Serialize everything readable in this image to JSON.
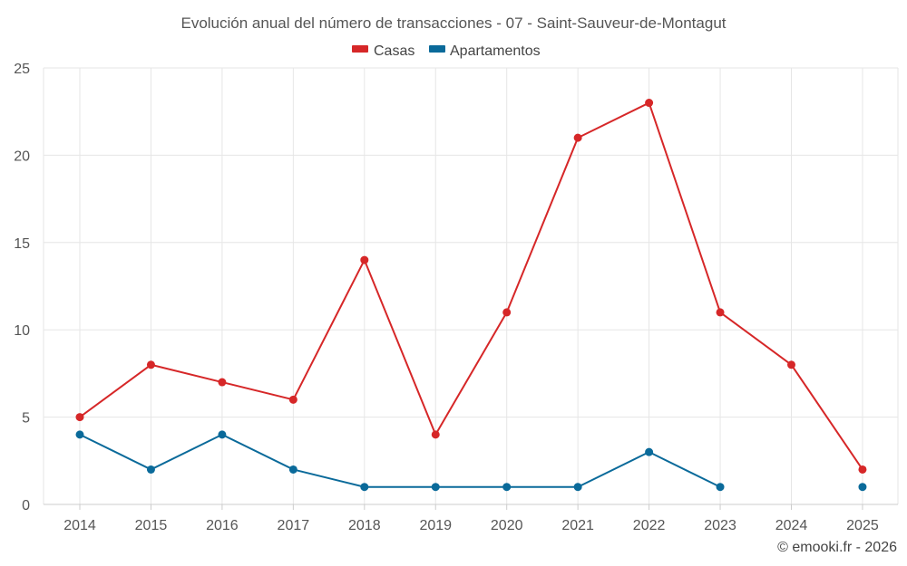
{
  "chart_data": {
    "type": "line",
    "title": "Evolución anual del número de transacciones - 07 - Saint-Sauveur-de-Montagut",
    "categories": [
      "2014",
      "2015",
      "2016",
      "2017",
      "2018",
      "2019",
      "2020",
      "2021",
      "2022",
      "2023",
      "2024",
      "2025"
    ],
    "series": [
      {
        "name": "Casas",
        "color": "#d62728",
        "values": [
          5,
          8,
          7,
          6,
          14,
          4,
          11,
          21,
          23,
          11,
          8,
          2
        ]
      },
      {
        "name": "Apartamentos",
        "color": "#0a6a9a",
        "values": [
          4,
          2,
          4,
          2,
          1,
          1,
          1,
          1,
          3,
          1,
          null,
          1
        ]
      }
    ],
    "ylim": [
      0,
      25
    ],
    "yticks": [
      0,
      5,
      10,
      15,
      20,
      25
    ],
    "xlabel": "",
    "ylabel": "",
    "grid": true,
    "legend": "top-center"
  },
  "credit": "© emooki.fr - 2026"
}
